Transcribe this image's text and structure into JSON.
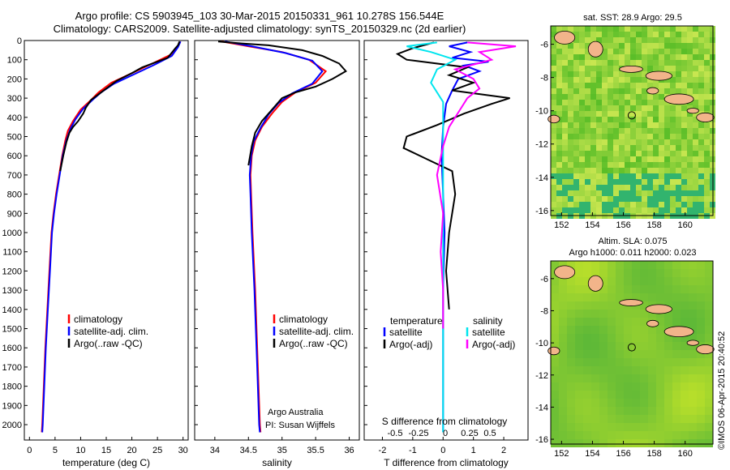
{
  "header": {
    "line1": "Argo profile: CS 5903945_103 30-Mar-2015 20150331_961 10.278S 156.544E",
    "line2": "Climatology: CARS2009. Satellite-adjusted climatology: synTS_20150329.nc (2d earlier)"
  },
  "footer_stamp": "©IMOS 06-Apr-2015 20:40:52",
  "colors": {
    "climatology": "#ff0000",
    "satellite": "#0000ff",
    "argo": "#000000",
    "sal_satellite": "#00e5ee",
    "sal_argo": "#ff00ff"
  },
  "chart_data": [
    {
      "type": "line",
      "xlabel": "temperature (deg C)",
      "xlim": [
        -1,
        31
      ],
      "ylim": [
        2080,
        0
      ],
      "xticks": [
        0,
        5,
        10,
        15,
        20,
        25,
        30
      ],
      "yticks": [
        0,
        100,
        200,
        300,
        400,
        500,
        600,
        700,
        800,
        900,
        1000,
        1100,
        1200,
        1300,
        1400,
        1500,
        1600,
        1700,
        1800,
        1900,
        2000
      ],
      "legend": [
        "climatology",
        "satellite-adj. clim.",
        "Argo(..raw -QC)"
      ],
      "series": [
        {
          "name": "climatology",
          "color": "#ff0000",
          "points": [
            [
              29.5,
              5
            ],
            [
              29,
              30
            ],
            [
              27.5,
              75
            ],
            [
              24,
              120
            ],
            [
              20,
              170
            ],
            [
              16,
              220
            ],
            [
              13.5,
              270
            ],
            [
              12,
              310
            ],
            [
              10,
              360
            ],
            [
              8.5,
              420
            ],
            [
              7.5,
              470
            ],
            [
              7,
              520
            ],
            [
              6.4,
              600
            ],
            [
              5.8,
              700
            ],
            [
              5.2,
              800
            ],
            [
              4.7,
              900
            ],
            [
              4.3,
              1000
            ],
            [
              3.9,
              1200
            ],
            [
              3.5,
              1400
            ],
            [
              3.1,
              1600
            ],
            [
              2.8,
              1800
            ],
            [
              2.5,
              2000
            ],
            [
              2.4,
              2040
            ]
          ]
        },
        {
          "name": "satellite-adj. clim.",
          "color": "#0000ff",
          "points": [
            [
              29.5,
              5
            ],
            [
              29,
              35
            ],
            [
              27.8,
              80
            ],
            [
              24.5,
              125
            ],
            [
              20.5,
              175
            ],
            [
              16.5,
              225
            ],
            [
              14,
              270
            ],
            [
              12.5,
              305
            ],
            [
              10.5,
              355
            ],
            [
              9,
              410
            ],
            [
              8,
              460
            ],
            [
              7.2,
              520
            ],
            [
              6.5,
              600
            ],
            [
              5.9,
              700
            ],
            [
              5.3,
              800
            ],
            [
              4.8,
              900
            ],
            [
              4.4,
              1000
            ],
            [
              4,
              1200
            ],
            [
              3.6,
              1400
            ],
            [
              3.2,
              1600
            ],
            [
              2.9,
              1800
            ],
            [
              2.6,
              2000
            ],
            [
              2.5,
              2040
            ]
          ]
        },
        {
          "name": "Argo(..raw -QC)",
          "color": "#000000",
          "points": [
            [
              29.3,
              5
            ],
            [
              29,
              25
            ],
            [
              28.5,
              40
            ],
            [
              27,
              90
            ],
            [
              25,
              110
            ],
            [
              22,
              140
            ],
            [
              20,
              170
            ],
            [
              17,
              210
            ],
            [
              15,
              250
            ],
            [
              13.5,
              280
            ],
            [
              12,
              310
            ],
            [
              11,
              350
            ],
            [
              10.5,
              380
            ],
            [
              9.5,
              420
            ],
            [
              8.5,
              450
            ],
            [
              7.8,
              480
            ],
            [
              7.2,
              530
            ],
            [
              6.6,
              600
            ],
            [
              6,
              680
            ]
          ]
        }
      ]
    },
    {
      "type": "line",
      "xlabel": "salinity",
      "xlim": [
        33.7,
        36.15
      ],
      "ylim": [
        2080,
        0
      ],
      "xticks": [
        34,
        34.5,
        35,
        35.5,
        36
      ],
      "legend": [
        "climatology",
        "satellite-adj. clim.",
        "Argo(..raw -QC)"
      ],
      "annotation": [
        "Argo Australia",
        "PI: Susan Wijffels"
      ],
      "series": [
        {
          "name": "climatology",
          "color": "#ff0000",
          "points": [
            [
              34.1,
              5
            ],
            [
              34.5,
              30
            ],
            [
              35,
              60
            ],
            [
              35.4,
              100
            ],
            [
              35.65,
              160
            ],
            [
              35.5,
              220
            ],
            [
              35.2,
              270
            ],
            [
              35,
              320
            ],
            [
              34.85,
              380
            ],
            [
              34.7,
              450
            ],
            [
              34.6,
              520
            ],
            [
              34.55,
              600
            ],
            [
              34.53,
              700
            ],
            [
              34.54,
              800
            ],
            [
              34.56,
              1000
            ],
            [
              34.6,
              1300
            ],
            [
              34.64,
              1700
            ],
            [
              34.67,
              2000
            ],
            [
              34.68,
              2040
            ]
          ]
        },
        {
          "name": "satellite-adj. clim.",
          "color": "#0000ff",
          "points": [
            [
              34.15,
              5
            ],
            [
              34.55,
              30
            ],
            [
              35.05,
              65
            ],
            [
              35.45,
              105
            ],
            [
              35.6,
              160
            ],
            [
              35.45,
              225
            ],
            [
              35.15,
              275
            ],
            [
              34.95,
              325
            ],
            [
              34.8,
              385
            ],
            [
              34.68,
              455
            ],
            [
              34.58,
              525
            ],
            [
              34.54,
              600
            ],
            [
              34.52,
              700
            ],
            [
              34.53,
              800
            ],
            [
              34.55,
              1000
            ],
            [
              34.59,
              1300
            ],
            [
              34.63,
              1700
            ],
            [
              34.66,
              2000
            ],
            [
              34.67,
              2040
            ]
          ]
        },
        {
          "name": "Argo(..raw -QC)",
          "color": "#000000",
          "points": [
            [
              34.05,
              5
            ],
            [
              34.4,
              15
            ],
            [
              34.8,
              25
            ],
            [
              35.3,
              50
            ],
            [
              35.6,
              80
            ],
            [
              35.85,
              120
            ],
            [
              35.95,
              160
            ],
            [
              35.75,
              200
            ],
            [
              35.5,
              240
            ],
            [
              35.2,
              270
            ],
            [
              35,
              300
            ],
            [
              34.9,
              340
            ],
            [
              34.8,
              380
            ],
            [
              34.7,
              420
            ],
            [
              34.6,
              480
            ],
            [
              34.55,
              550
            ],
            [
              34.5,
              650
            ]
          ]
        }
      ]
    },
    {
      "type": "line",
      "xlabel": "T difference from climatology",
      "toplabel": "S difference from climatology",
      "xlim": [
        -2.6,
        2.8
      ],
      "ylim": [
        2080,
        0
      ],
      "xticks": [
        -2,
        -1,
        0,
        1,
        2
      ],
      "sxticks": [
        "-0.5",
        "-0.25",
        "0",
        "0.25",
        "0.5"
      ],
      "legend_headers": [
        "temperature",
        "salinity"
      ],
      "legend": [
        "satellite",
        "Argo(-adj)",
        "satellite",
        "Argo(-adj)"
      ],
      "series": [
        {
          "name": "temperature satellite",
          "color": "#0000ff",
          "points": [
            [
              0.8,
              10
            ],
            [
              0.2,
              30
            ],
            [
              0.9,
              60
            ],
            [
              0.3,
              90
            ],
            [
              1.5,
              110
            ],
            [
              0.7,
              130
            ],
            [
              1.2,
              160
            ],
            [
              0.5,
              200
            ],
            [
              0.3,
              260
            ],
            [
              0.1,
              330
            ],
            [
              0,
              450
            ],
            [
              -0.05,
              600
            ],
            [
              0,
              800
            ],
            [
              0.05,
              1000
            ],
            [
              0,
              1300
            ],
            [
              0,
              1600
            ],
            [
              0,
              2040
            ]
          ]
        },
        {
          "name": "temperature Argo(-adj)",
          "color": "#000000",
          "points": [
            [
              -0.3,
              10
            ],
            [
              -1,
              40
            ],
            [
              -1.5,
              70
            ],
            [
              -1.2,
              100
            ],
            [
              0.8,
              140
            ],
            [
              0.2,
              180
            ],
            [
              1,
              220
            ],
            [
              0.3,
              260
            ],
            [
              2.2,
              300
            ],
            [
              1.6,
              330
            ],
            [
              0.7,
              380
            ],
            [
              -0.2,
              440
            ],
            [
              -1.2,
              500
            ],
            [
              -1.3,
              560
            ],
            [
              -0.5,
              620
            ],
            [
              0.3,
              680
            ],
            [
              0.4,
              800
            ],
            [
              0.2,
              1000
            ],
            [
              0.1,
              1200
            ],
            [
              0.2,
              1400
            ]
          ]
        },
        {
          "name": "salinity satellite",
          "color": "#00e5ee",
          "points": [
            [
              -0.05,
              10
            ],
            [
              -0.3,
              30
            ],
            [
              -0.1,
              60
            ],
            [
              0.1,
              100
            ],
            [
              -0.05,
              150
            ],
            [
              -0.1,
              220
            ],
            [
              0,
              320
            ],
            [
              0,
              500
            ],
            [
              0,
              800
            ],
            [
              0,
              1200
            ],
            [
              0,
              2040
            ]
          ]
        },
        {
          "name": "salinity Argo(-adj)",
          "color": "#ff00ff",
          "points": [
            [
              0.2,
              10
            ],
            [
              0.6,
              30
            ],
            [
              0.3,
              60
            ],
            [
              0.4,
              100
            ],
            [
              0.1,
              150
            ],
            [
              0.25,
              200
            ],
            [
              0.3,
              250
            ],
            [
              0.2,
              300
            ],
            [
              0.15,
              350
            ],
            [
              0.1,
              400
            ],
            [
              0.05,
              450
            ],
            [
              0,
              550
            ],
            [
              -0.05,
              700
            ],
            [
              0,
              900
            ],
            [
              -0.02,
              1100
            ],
            [
              0,
              1300
            ],
            [
              0,
              1500
            ]
          ]
        }
      ]
    },
    {
      "type": "heatmap",
      "title": "sat. SST: 28.9  Argo: 29.5",
      "xticks": [
        152,
        154,
        156,
        158,
        160
      ],
      "yticks": [
        -6,
        -8,
        -10,
        -12,
        -14,
        -16
      ],
      "xlim": [
        151.3,
        161.8
      ],
      "ylim": [
        -16.3,
        -4.9
      ],
      "argo_position": [
        156.544,
        -10.278
      ]
    },
    {
      "type": "heatmap",
      "title": "Altim. SLA: 0.075",
      "subtitle": "Argo h1000: 0.011  h2000: 0.023",
      "xticks": [
        152,
        154,
        156,
        158,
        160
      ],
      "yticks": [
        -6,
        -8,
        -10,
        -12,
        -14,
        -16
      ],
      "xlim": [
        151.3,
        161.8
      ],
      "ylim": [
        -16.3,
        -4.9
      ],
      "argo_position": [
        156.544,
        -10.278
      ]
    }
  ]
}
